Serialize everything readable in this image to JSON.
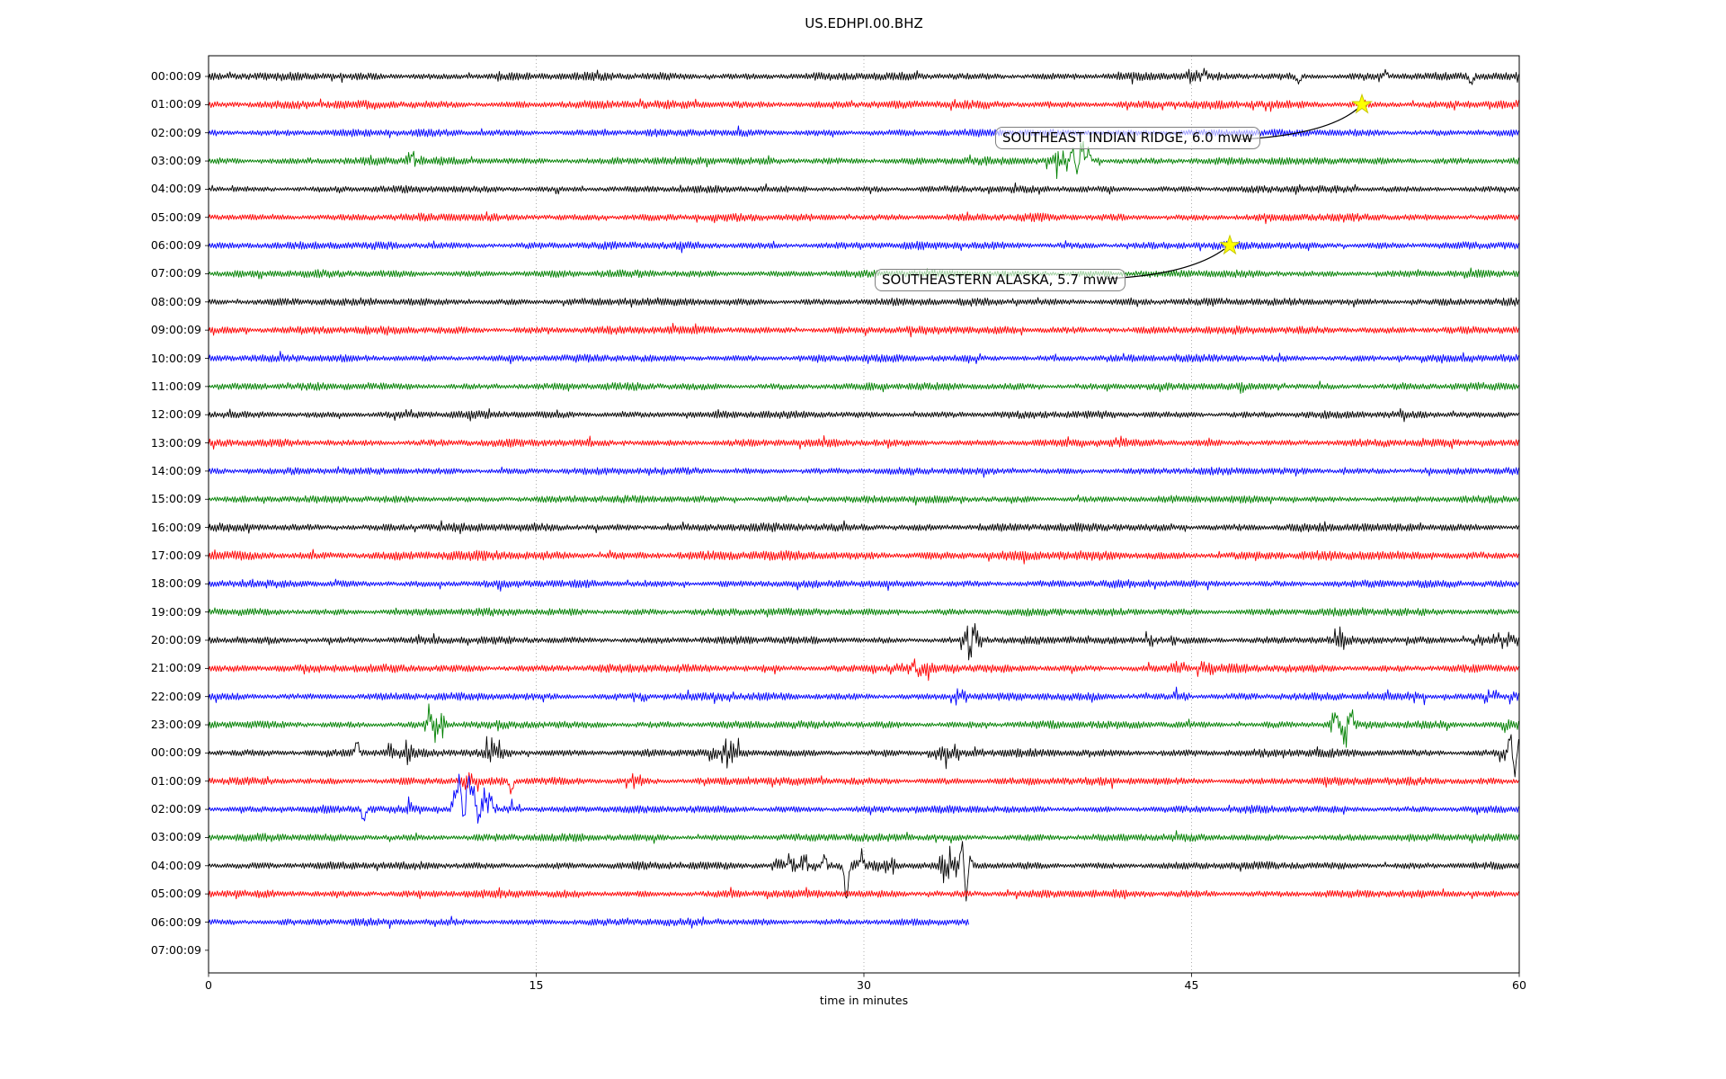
{
  "chart_data": {
    "type": "line",
    "subtype": "seismogram-dayplot",
    "title": "US.EDHPI.00.BHZ",
    "xlabel": "time in minutes",
    "xlim": [
      0,
      60
    ],
    "x_ticks": [
      0,
      15,
      30,
      45,
      60
    ],
    "grid": "vertical-dotted at 15/30/45",
    "legend": "none",
    "colors": {
      "cycle": [
        "#000000",
        "#ff0000",
        "#0000ff",
        "#008000"
      ],
      "grid": "#b0b0b0",
      "frame": "#000000",
      "star_fill": "#ffff00",
      "star_edge": "#c8c800",
      "leader": "#000000"
    },
    "rows": [
      {
        "label": "00:00:09",
        "color": "#000000",
        "amp": 3.6,
        "end": 60,
        "events": [
          [
            44.6,
            45.4,
            1.6
          ]
        ],
        "spikes": [
          [
            45.6,
            6
          ],
          [
            49.9,
            -7
          ],
          [
            53.9,
            5
          ],
          [
            57.8,
            -9
          ]
        ]
      },
      {
        "label": "01:00:09",
        "color": "#ff0000",
        "amp": 3.8,
        "end": 60,
        "events": [],
        "spikes": []
      },
      {
        "label": "02:00:09",
        "color": "#0000ff",
        "amp": 3.4,
        "end": 60,
        "events": [],
        "spikes": []
      },
      {
        "label": "03:00:09",
        "color": "#008000",
        "amp": 3.6,
        "end": 60,
        "events": [
          [
            9.0,
            9.9,
            2.1
          ],
          [
            38.3,
            39.3,
            2.4
          ],
          [
            39.9,
            40.8,
            1.8
          ]
        ],
        "spikes": [
          [
            9.35,
            8
          ],
          [
            39.55,
            14
          ],
          [
            39.75,
            -12
          ],
          [
            40.0,
            16
          ],
          [
            40.3,
            11
          ]
        ]
      },
      {
        "label": "04:00:09",
        "color": "#000000",
        "amp": 3.2,
        "end": 60,
        "events": [],
        "spikes": []
      },
      {
        "label": "05:00:09",
        "color": "#ff0000",
        "amp": 3.5,
        "end": 60,
        "events": [],
        "spikes": []
      },
      {
        "label": "06:00:09",
        "color": "#0000ff",
        "amp": 3.5,
        "end": 60,
        "events": [],
        "spikes": []
      },
      {
        "label": "07:00:09",
        "color": "#008000",
        "amp": 3.4,
        "end": 60,
        "events": [],
        "spikes": []
      },
      {
        "label": "08:00:09",
        "color": "#000000",
        "amp": 3.5,
        "end": 60,
        "events": [],
        "spikes": []
      },
      {
        "label": "09:00:09",
        "color": "#ff0000",
        "amp": 3.7,
        "end": 60,
        "events": [],
        "spikes": []
      },
      {
        "label": "10:00:09",
        "color": "#0000ff",
        "amp": 3.4,
        "end": 60,
        "events": [],
        "spikes": []
      },
      {
        "label": "11:00:09",
        "color": "#008000",
        "amp": 3.4,
        "end": 60,
        "events": [],
        "spikes": []
      },
      {
        "label": "12:00:09",
        "color": "#000000",
        "amp": 3.4,
        "end": 60,
        "events": [],
        "spikes": []
      },
      {
        "label": "13:00:09",
        "color": "#ff0000",
        "amp": 3.5,
        "end": 60,
        "events": [],
        "spikes": []
      },
      {
        "label": "14:00:09",
        "color": "#0000ff",
        "amp": 3.3,
        "end": 60,
        "events": [],
        "spikes": []
      },
      {
        "label": "15:00:09",
        "color": "#008000",
        "amp": 3.3,
        "end": 60,
        "events": [],
        "spikes": []
      },
      {
        "label": "16:00:09",
        "color": "#000000",
        "amp": 3.8,
        "end": 60,
        "events": [],
        "spikes": []
      },
      {
        "label": "17:00:09",
        "color": "#ff0000",
        "amp": 4.3,
        "end": 60,
        "events": [],
        "spikes": []
      },
      {
        "label": "18:00:09",
        "color": "#0000ff",
        "amp": 3.5,
        "end": 60,
        "events": [],
        "spikes": []
      },
      {
        "label": "19:00:09",
        "color": "#008000",
        "amp": 3.5,
        "end": 60,
        "events": [],
        "spikes": []
      },
      {
        "label": "20:00:09",
        "color": "#000000",
        "amp": 3.5,
        "end": 60,
        "events": [
          [
            34.4,
            35.4,
            3.0
          ],
          [
            42.9,
            44.9,
            1.8
          ],
          [
            51.4,
            52.4,
            1.5
          ],
          [
            57.4,
            60,
            1.5
          ]
        ],
        "spikes": [
          [
            34.7,
            12
          ],
          [
            34.9,
            -13
          ],
          [
            35.05,
            14
          ]
        ]
      },
      {
        "label": "21:00:09",
        "color": "#ff0000",
        "amp": 3.8,
        "end": 60,
        "events": [
          [
            30.4,
            33.2,
            1.3
          ],
          [
            44.0,
            46.0,
            1.25
          ]
        ],
        "spikes": [
          [
            32.3,
            8
          ],
          [
            32.45,
            -6
          ]
        ]
      },
      {
        "label": "22:00:09",
        "color": "#0000ff",
        "amp": 3.5,
        "end": 60,
        "events": [
          [
            19.4,
            20.1,
            1.4
          ],
          [
            22.9,
            23.9,
            1.5
          ],
          [
            33.9,
            34.9,
            2.0
          ],
          [
            44.1,
            45.1,
            1.9
          ],
          [
            54.9,
            55.7,
            1.8
          ],
          [
            58.2,
            60,
            1.9
          ]
        ],
        "spikes": []
      },
      {
        "label": "23:00:09",
        "color": "#008000",
        "amp": 3.5,
        "end": 60,
        "events": [
          [
            9.8,
            10.9,
            2.3
          ],
          [
            51.2,
            52.4,
            2.3
          ],
          [
            59.2,
            60,
            1.9
          ]
        ],
        "spikes": [
          [
            10.1,
            10
          ],
          [
            10.45,
            -9
          ],
          [
            51.6,
            11
          ],
          [
            52.0,
            -10
          ],
          [
            52.3,
            12
          ]
        ]
      },
      {
        "label": "00:00:09",
        "color": "#000000",
        "amp": 3.7,
        "end": 60,
        "events": [
          [
            8.2,
            9.3,
            1.6
          ],
          [
            12.4,
            13.9,
            1.9
          ],
          [
            22.9,
            24.4,
            2.1
          ],
          [
            32.9,
            34.4,
            2.1
          ],
          [
            59.1,
            60,
            2.0
          ]
        ],
        "spikes": [
          [
            6.8,
            13
          ],
          [
            59.6,
            20
          ],
          [
            59.8,
            -26
          ],
          [
            59.95,
            14
          ]
        ]
      },
      {
        "label": "01:00:09",
        "color": "#ff0000",
        "amp": 3.6,
        "end": 60,
        "events": [
          [
            11.4,
            12.4,
            1.5
          ],
          [
            19.1,
            19.9,
            1.6
          ]
        ],
        "spikes": [
          [
            11.9,
            7
          ],
          [
            13.85,
            -12
          ]
        ]
      },
      {
        "label": "02:00:09",
        "color": "#0000ff",
        "amp": 3.4,
        "end": 60,
        "events": [
          [
            8.9,
            9.7,
            1.6
          ],
          [
            11.0,
            13.0,
            2.6
          ],
          [
            13.0,
            14.3,
            1.7
          ]
        ],
        "spikes": [
          [
            7.1,
            -13
          ],
          [
            11.3,
            20
          ],
          [
            11.5,
            30
          ],
          [
            11.68,
            -13
          ],
          [
            11.9,
            36
          ],
          [
            12.1,
            24
          ],
          [
            12.35,
            -11
          ],
          [
            12.6,
            17
          ],
          [
            12.9,
            11
          ]
        ]
      },
      {
        "label": "03:00:09",
        "color": "#008000",
        "amp": 3.5,
        "end": 60,
        "events": [],
        "spikes": []
      },
      {
        "label": "04:00:09",
        "color": "#000000",
        "amp": 3.5,
        "end": 60,
        "events": [
          [
            25.7,
            29.6,
            1.8
          ],
          [
            29.6,
            31.4,
            1.5
          ],
          [
            33.4,
            34.4,
            2.7
          ]
        ],
        "spikes": [
          [
            26.6,
            8
          ],
          [
            27.3,
            10
          ],
          [
            28.2,
            12
          ],
          [
            29.2,
            -38
          ],
          [
            29.9,
            16
          ],
          [
            34.5,
            26
          ],
          [
            34.68,
            -38
          ],
          [
            34.85,
            10
          ]
        ]
      },
      {
        "label": "05:00:09",
        "color": "#ff0000",
        "amp": 3.6,
        "end": 60,
        "events": [],
        "spikes": []
      },
      {
        "label": "06:00:09",
        "color": "#0000ff",
        "amp": 3.3,
        "end": 34.8,
        "events": [],
        "spikes": []
      },
      {
        "label": "07:00:09",
        "color": "#008000",
        "amp": 0,
        "end": 0,
        "events": [],
        "spikes": []
      }
    ],
    "stars": [
      {
        "row": 1,
        "minute": 52.8
      },
      {
        "row": 6,
        "minute": 46.75
      }
    ],
    "annotations": [
      {
        "text": "SOUTHEAST INDIAN RIDGE, 6.0 mww",
        "magnitude": "6.0 mww",
        "region": "SOUTHEAST INDIAN RIDGE",
        "star": 0
      },
      {
        "text": "SOUTHEASTERN ALASKA, 5.7 mww",
        "magnitude": "5.7 mww",
        "region": "SOUTHEASTERN ALASKA",
        "star": 1
      }
    ]
  }
}
